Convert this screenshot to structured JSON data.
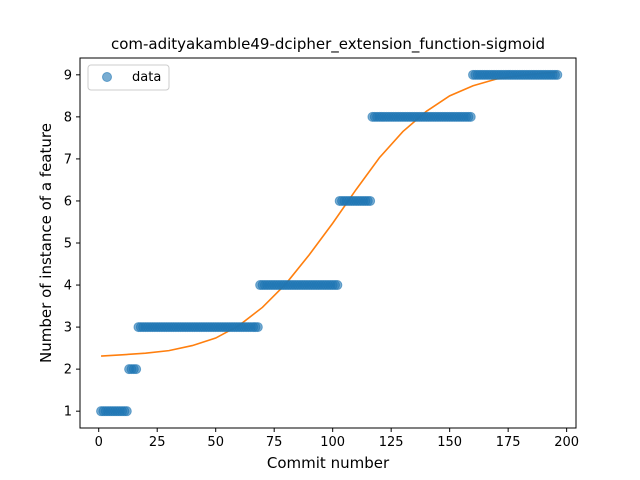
{
  "chart_data": {
    "type": "scatter",
    "title": "com-adityakamble49-dcipher_extension_function-sigmoid",
    "xlabel": "Commit number",
    "ylabel": "Number of instance of a feature",
    "xlim": [
      -8,
      204
    ],
    "ylim": [
      0.6,
      9.4
    ],
    "xticks": [
      0,
      25,
      50,
      75,
      100,
      125,
      150,
      175,
      200
    ],
    "yticks": [
      1,
      2,
      3,
      4,
      5,
      6,
      7,
      8,
      9
    ],
    "legend": {
      "placement": "top-left",
      "entries": [
        "data"
      ]
    },
    "grid": false,
    "colors": {
      "data": "#1f77b4",
      "fit": "#ff7f0e"
    },
    "series": [
      {
        "name": "data",
        "kind": "scatter",
        "points": [
          [
            1,
            1
          ],
          [
            2,
            1
          ],
          [
            3,
            1
          ],
          [
            4,
            1
          ],
          [
            5,
            1
          ],
          [
            6,
            1
          ],
          [
            7,
            1
          ],
          [
            8,
            1
          ],
          [
            9,
            1
          ],
          [
            10,
            1
          ],
          [
            11,
            1
          ],
          [
            12,
            1
          ],
          [
            13,
            2
          ],
          [
            14,
            2
          ],
          [
            15,
            2
          ],
          [
            16,
            2
          ],
          [
            17,
            3
          ],
          [
            18,
            3
          ],
          [
            19,
            3
          ],
          [
            20,
            3
          ],
          [
            21,
            3
          ],
          [
            22,
            3
          ],
          [
            23,
            3
          ],
          [
            24,
            3
          ],
          [
            25,
            3
          ],
          [
            26,
            3
          ],
          [
            27,
            3
          ],
          [
            28,
            3
          ],
          [
            29,
            3
          ],
          [
            30,
            3
          ],
          [
            31,
            3
          ],
          [
            32,
            3
          ],
          [
            33,
            3
          ],
          [
            34,
            3
          ],
          [
            35,
            3
          ],
          [
            36,
            3
          ],
          [
            37,
            3
          ],
          [
            38,
            3
          ],
          [
            39,
            3
          ],
          [
            40,
            3
          ],
          [
            41,
            3
          ],
          [
            42,
            3
          ],
          [
            43,
            3
          ],
          [
            44,
            3
          ],
          [
            45,
            3
          ],
          [
            46,
            3
          ],
          [
            47,
            3
          ],
          [
            48,
            3
          ],
          [
            49,
            3
          ],
          [
            50,
            3
          ],
          [
            51,
            3
          ],
          [
            52,
            3
          ],
          [
            53,
            3
          ],
          [
            54,
            3
          ],
          [
            55,
            3
          ],
          [
            56,
            3
          ],
          [
            57,
            3
          ],
          [
            58,
            3
          ],
          [
            59,
            3
          ],
          [
            60,
            3
          ],
          [
            61,
            3
          ],
          [
            62,
            3
          ],
          [
            63,
            3
          ],
          [
            64,
            3
          ],
          [
            65,
            3
          ],
          [
            66,
            3
          ],
          [
            67,
            3
          ],
          [
            68,
            3
          ],
          [
            69,
            4
          ],
          [
            70,
            4
          ],
          [
            71,
            4
          ],
          [
            72,
            4
          ],
          [
            73,
            4
          ],
          [
            74,
            4
          ],
          [
            75,
            4
          ],
          [
            76,
            4
          ],
          [
            77,
            4
          ],
          [
            78,
            4
          ],
          [
            79,
            4
          ],
          [
            80,
            4
          ],
          [
            81,
            4
          ],
          [
            82,
            4
          ],
          [
            83,
            4
          ],
          [
            84,
            4
          ],
          [
            85,
            4
          ],
          [
            86,
            4
          ],
          [
            87,
            4
          ],
          [
            88,
            4
          ],
          [
            89,
            4
          ],
          [
            90,
            4
          ],
          [
            91,
            4
          ],
          [
            92,
            4
          ],
          [
            93,
            4
          ],
          [
            94,
            4
          ],
          [
            95,
            4
          ],
          [
            96,
            4
          ],
          [
            97,
            4
          ],
          [
            98,
            4
          ],
          [
            99,
            4
          ],
          [
            100,
            4
          ],
          [
            101,
            4
          ],
          [
            102,
            4
          ],
          [
            103,
            6
          ],
          [
            104,
            6
          ],
          [
            105,
            6
          ],
          [
            106,
            6
          ],
          [
            107,
            6
          ],
          [
            108,
            6
          ],
          [
            109,
            6
          ],
          [
            110,
            6
          ],
          [
            111,
            6
          ],
          [
            112,
            6
          ],
          [
            113,
            6
          ],
          [
            114,
            6
          ],
          [
            115,
            6
          ],
          [
            116,
            6
          ],
          [
            117,
            8
          ],
          [
            118,
            8
          ],
          [
            119,
            8
          ],
          [
            120,
            8
          ],
          [
            121,
            8
          ],
          [
            122,
            8
          ],
          [
            123,
            8
          ],
          [
            124,
            8
          ],
          [
            125,
            8
          ],
          [
            126,
            8
          ],
          [
            127,
            8
          ],
          [
            128,
            8
          ],
          [
            129,
            8
          ],
          [
            130,
            8
          ],
          [
            131,
            8
          ],
          [
            132,
            8
          ],
          [
            133,
            8
          ],
          [
            134,
            8
          ],
          [
            135,
            8
          ],
          [
            136,
            8
          ],
          [
            137,
            8
          ],
          [
            138,
            8
          ],
          [
            139,
            8
          ],
          [
            140,
            8
          ],
          [
            141,
            8
          ],
          [
            142,
            8
          ],
          [
            143,
            8
          ],
          [
            144,
            8
          ],
          [
            145,
            8
          ],
          [
            146,
            8
          ],
          [
            147,
            8
          ],
          [
            148,
            8
          ],
          [
            149,
            8
          ],
          [
            150,
            8
          ],
          [
            151,
            8
          ],
          [
            152,
            8
          ],
          [
            153,
            8
          ],
          [
            154,
            8
          ],
          [
            155,
            8
          ],
          [
            156,
            8
          ],
          [
            157,
            8
          ],
          [
            158,
            8
          ],
          [
            159,
            8
          ],
          [
            160,
            9
          ],
          [
            161,
            9
          ],
          [
            162,
            9
          ],
          [
            163,
            9
          ],
          [
            164,
            9
          ],
          [
            165,
            9
          ],
          [
            166,
            9
          ],
          [
            167,
            9
          ],
          [
            168,
            9
          ],
          [
            169,
            9
          ],
          [
            170,
            9
          ],
          [
            171,
            9
          ],
          [
            172,
            9
          ],
          [
            173,
            9
          ],
          [
            174,
            9
          ],
          [
            175,
            9
          ],
          [
            176,
            9
          ],
          [
            177,
            9
          ],
          [
            178,
            9
          ],
          [
            179,
            9
          ],
          [
            180,
            9
          ],
          [
            181,
            9
          ],
          [
            182,
            9
          ],
          [
            183,
            9
          ],
          [
            184,
            9
          ],
          [
            185,
            9
          ],
          [
            186,
            9
          ],
          [
            187,
            9
          ],
          [
            188,
            9
          ],
          [
            189,
            9
          ],
          [
            190,
            9
          ],
          [
            191,
            9
          ],
          [
            192,
            9
          ],
          [
            193,
            9
          ],
          [
            194,
            9
          ],
          [
            195,
            9
          ],
          [
            196,
            9
          ]
        ]
      },
      {
        "kind": "line",
        "points": [
          [
            1,
            2.31
          ],
          [
            10,
            2.34
          ],
          [
            20,
            2.38
          ],
          [
            30,
            2.44
          ],
          [
            40,
            2.56
          ],
          [
            50,
            2.74
          ],
          [
            60,
            3.04
          ],
          [
            70,
            3.47
          ],
          [
            80,
            4.03
          ],
          [
            90,
            4.72
          ],
          [
            100,
            5.47
          ],
          [
            110,
            6.27
          ],
          [
            120,
            7.03
          ],
          [
            130,
            7.65
          ],
          [
            140,
            8.13
          ],
          [
            150,
            8.5
          ],
          [
            160,
            8.74
          ],
          [
            170,
            8.9
          ],
          [
            180,
            8.98
          ],
          [
            190,
            9.04
          ],
          [
            196,
            9.06
          ]
        ]
      }
    ]
  }
}
